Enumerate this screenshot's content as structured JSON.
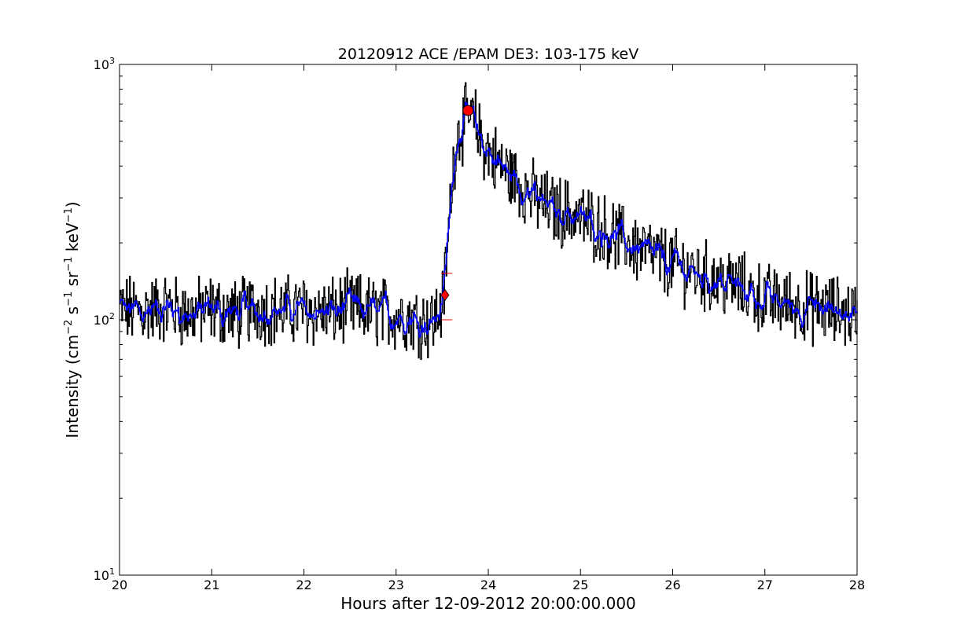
{
  "chart_data": {
    "type": "line",
    "title": "20120912 ACE /EPAM DE3: 103-175 keV",
    "xlabel": "Hours after 12-09-2012 20:00:00.000",
    "ylabel": "Intensity (cm",
    "ylabel_parts": [
      "Intensity (cm",
      "−2",
      " s",
      "−1",
      " sr",
      "−1",
      " keV",
      "−1",
      ")"
    ],
    "xlim": [
      20,
      28
    ],
    "ylim": [
      10,
      1000
    ],
    "yscale": "log",
    "x_ticks": [
      "20",
      "21",
      "22",
      "23",
      "24",
      "25",
      "26",
      "27",
      "28"
    ],
    "y_ticks": [
      {
        "base": "10",
        "exp": "1"
      },
      {
        "base": "10",
        "exp": "2"
      },
      {
        "base": "10",
        "exp": "3"
      }
    ],
    "grid": false,
    "series": [
      {
        "color": "#000000",
        "style": "raw",
        "x": [
          20.0,
          20.25,
          20.5,
          20.75,
          21.0,
          21.25,
          21.5,
          21.75,
          22.0,
          22.25,
          22.5,
          22.75,
          23.0,
          23.25,
          23.4,
          23.5,
          23.55,
          23.6,
          23.65,
          23.7,
          23.78,
          23.85,
          23.95,
          24.1,
          24.3,
          24.5,
          24.7,
          24.9,
          25.1,
          25.3,
          25.5,
          25.7,
          25.9,
          26.1,
          26.4,
          26.7,
          27.0,
          27.3,
          27.6,
          28.0
        ],
        "y": [
          110,
          108,
          112,
          105,
          110,
          105,
          112,
          108,
          110,
          106,
          112,
          108,
          105,
          100,
          98,
          115,
          180,
          350,
          520,
          560,
          620,
          590,
          480,
          410,
          350,
          300,
          270,
          260,
          240,
          220,
          200,
          185,
          170,
          160,
          145,
          135,
          120,
          115,
          110,
          105
        ]
      },
      {
        "color": "#0000ff",
        "style": "smoothed",
        "x": [
          20.0,
          20.25,
          20.5,
          20.75,
          21.0,
          21.25,
          21.5,
          21.75,
          22.0,
          22.25,
          22.5,
          22.75,
          23.0,
          23.25,
          23.4,
          23.5,
          23.55,
          23.6,
          23.65,
          23.7,
          23.78,
          23.85,
          23.95,
          24.1,
          24.3,
          24.5,
          24.7,
          24.9,
          25.1,
          25.3,
          25.5,
          25.7,
          25.9,
          26.1,
          26.4,
          26.7,
          27.0,
          27.3,
          27.6,
          28.0
        ],
        "y": [
          110,
          108,
          112,
          105,
          110,
          105,
          112,
          108,
          110,
          106,
          112,
          108,
          105,
          100,
          98,
          115,
          180,
          350,
          520,
          560,
          620,
          590,
          480,
          410,
          350,
          300,
          270,
          260,
          240,
          220,
          200,
          185,
          170,
          160,
          145,
          135,
          120,
          115,
          110,
          105
        ]
      }
    ],
    "markers": [
      {
        "shape": "circle",
        "color": "#ff0000",
        "x": 23.78,
        "y": 660
      },
      {
        "shape": "diamond",
        "color": "#ff0000",
        "x": 23.53,
        "y": 125
      },
      {
        "shape": "cross",
        "color": "#ff0000",
        "x": 23.55,
        "y": 152
      },
      {
        "shape": "cross",
        "color": "#ff0000",
        "x": 23.55,
        "y": 100
      }
    ]
  }
}
